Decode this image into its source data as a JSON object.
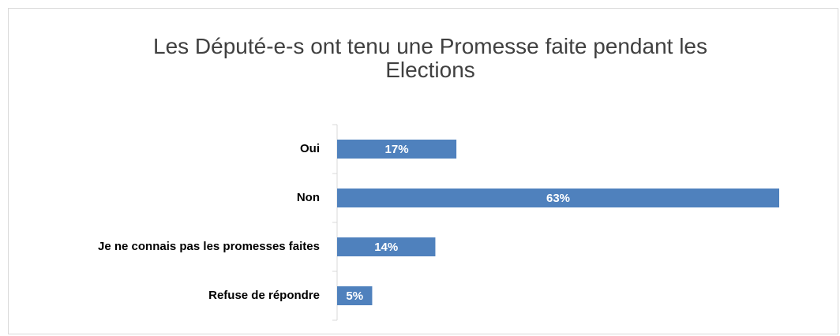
{
  "chart_data": {
    "type": "bar",
    "orientation": "horizontal",
    "title": "Les Député-e-s ont tenu une Promesse faite pendant les Elections",
    "categories": [
      "Oui",
      "Non",
      "Je ne connais pas les promesses faites",
      "Refuse de répondre"
    ],
    "values": [
      17,
      63,
      14,
      5
    ],
    "value_labels": [
      "17%",
      "63%",
      "14%",
      "5%"
    ],
    "color": "#4f81bd"
  }
}
